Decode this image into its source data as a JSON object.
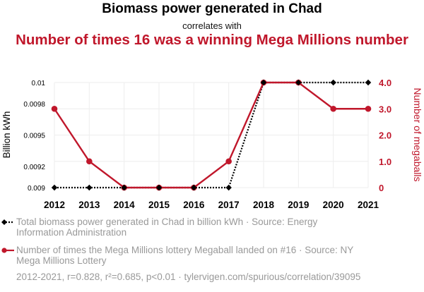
{
  "header": {
    "title": "Biomass power generated in Chad",
    "connector": "correlates with",
    "subtitle": "Number of times 16 was a winning Mega Millions number"
  },
  "legend": {
    "series1": "Total biomass power generated in Chad in billion kWh · Source: Energy Information Administration",
    "series2": "Number of times the Mega Millions lottery Megaball landed on #16 · Source: NY Mega Millions Lottery"
  },
  "footer": "2012-2021, r=0.828, r²=0.685, p<0.01 · tylervigen.com/spurious/correlation/39095",
  "colors": {
    "series1": "#000000",
    "series2": "#c0172b",
    "grid": "#eeeeee"
  },
  "chart_data": {
    "type": "line",
    "x": [
      "2012",
      "2013",
      "2014",
      "2015",
      "2016",
      "2017",
      "2018",
      "2019",
      "2020",
      "2021"
    ],
    "series": [
      {
        "name": "Biomass power generated in Chad",
        "axis": "left",
        "values": [
          0.009,
          0.009,
          0.009,
          0.009,
          0.009,
          0.009,
          0.01,
          0.01,
          0.01,
          0.01
        ]
      },
      {
        "name": "Number of times 16 was a winning Mega Millions number",
        "axis": "right",
        "values": [
          3,
          1,
          0,
          0,
          0,
          1,
          4,
          4,
          3,
          3
        ]
      }
    ],
    "ylabel_left": "Billion kWh",
    "ylabel_right": "Number of megaballs",
    "yticks_left": [
      {
        "value": 0.009,
        "label": "0.009"
      },
      {
        "value": 0.0092,
        "label": "0.0092"
      },
      {
        "value": 0.0095,
        "label": "0.0095"
      },
      {
        "value": 0.0098,
        "label": "0.0098"
      },
      {
        "value": 0.01,
        "label": "0.01"
      }
    ],
    "yticks_right": [
      {
        "value": 0,
        "label": "0"
      },
      {
        "value": 1,
        "label": "1.0"
      },
      {
        "value": 2,
        "label": "2.0"
      },
      {
        "value": 3,
        "label": "3.0"
      },
      {
        "value": 4,
        "label": "4.0"
      }
    ],
    "ylim_left": [
      0.009,
      0.01
    ],
    "ylim_right": [
      0,
      4
    ]
  }
}
